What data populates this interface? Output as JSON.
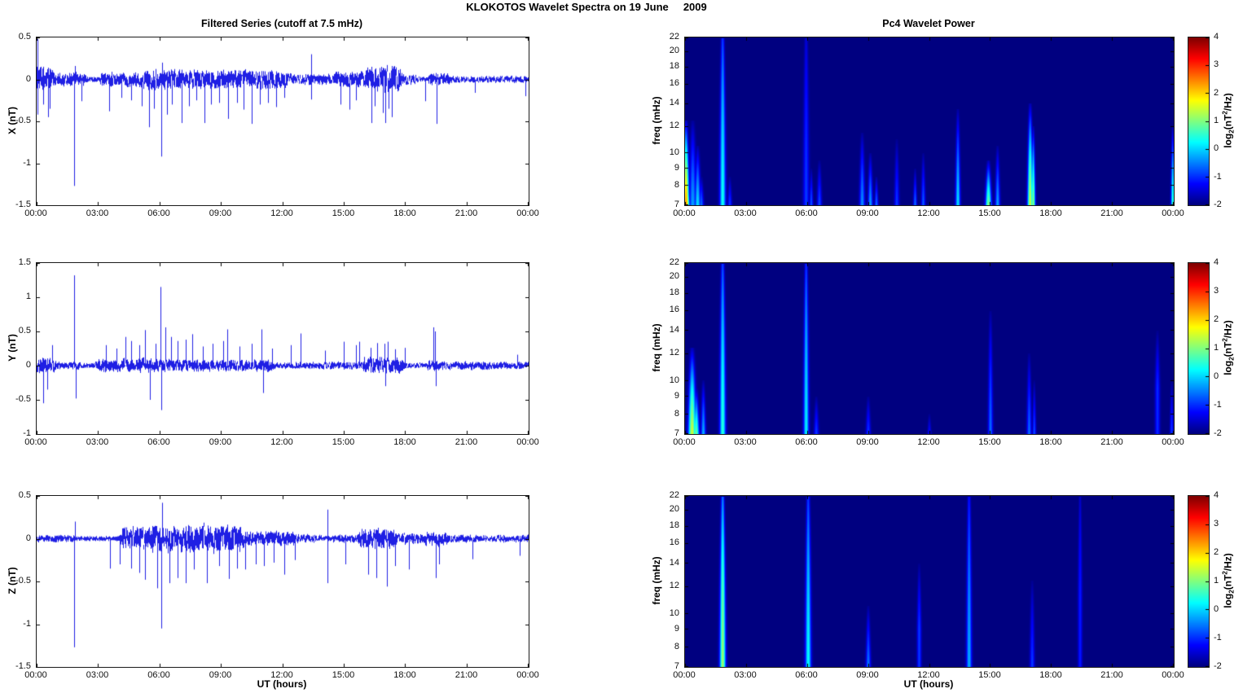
{
  "figure": {
    "title": "KLOKOTOS Wavelet Spectra on 19 June     2009"
  },
  "left_column": {
    "title": "Filtered Series (cutoff at 7.5 mHz)",
    "xlabel": "UT (hours)"
  },
  "right_column": {
    "title": "Pc4 Wavelet Power",
    "xlabel": "UT (hours)",
    "ylabel": "freq (mHz)"
  },
  "time_axis": {
    "ticks_hours": [
      0,
      3,
      6,
      9,
      12,
      15,
      18,
      21,
      24
    ],
    "tick_labels": [
      "00:00",
      "03:00",
      "06:00",
      "09:00",
      "12:00",
      "15:00",
      "18:00",
      "21:00",
      "00:00"
    ]
  },
  "freq_axis": {
    "scale": "log",
    "min_mHz": 7,
    "max_mHz": 22,
    "ticks": [
      7,
      8,
      9,
      10,
      12,
      14,
      16,
      18,
      20,
      22
    ]
  },
  "colorbar": {
    "range": [
      -2,
      4
    ],
    "ticks": [
      4,
      3,
      2,
      1,
      0,
      -1,
      -2
    ],
    "label_plain": "log2(nT^2/Hz)",
    "label_parts": {
      "pre": "log",
      "sub": "2",
      "mid": "(nT",
      "sup": "2",
      "post": "/Hz)"
    },
    "colormap": "jet"
  },
  "line_color": "#0000E0",
  "chart_data": [
    {
      "type": "line",
      "id": "X",
      "title": "Filtered Series (cutoff at 7.5 mHz)",
      "xlabel": "UT (hours)",
      "ylabel": "X (nT)",
      "xlim": [
        0,
        24
      ],
      "ylim": [
        -1.5,
        0.5
      ],
      "yticks": [
        0.5,
        0,
        -0.5,
        -1,
        -1.5
      ],
      "noise_base": 0.022,
      "bursts": [
        [
          0.0,
          0.75,
          0.1
        ],
        [
          0.9,
          2.3,
          0.055
        ],
        [
          3.2,
          5.1,
          0.06
        ],
        [
          5.1,
          8.1,
          0.08
        ],
        [
          8.1,
          12.2,
          0.08
        ],
        [
          12.2,
          14.5,
          0.045
        ],
        [
          14.6,
          16.1,
          0.07
        ],
        [
          16.1,
          17.7,
          0.11
        ],
        [
          17.7,
          18.5,
          0.045
        ],
        [
          19.2,
          20.1,
          0.05
        ],
        [
          20.1,
          24,
          0.03
        ]
      ],
      "spikes": [
        [
          0.02,
          0.48
        ],
        [
          0.04,
          -0.42
        ],
        [
          0.3,
          -0.3
        ],
        [
          0.55,
          -0.45
        ],
        [
          0.65,
          -0.35
        ],
        [
          1.85,
          -1.27
        ],
        [
          1.87,
          0.16
        ],
        [
          2.2,
          -0.26
        ],
        [
          3.55,
          -0.38
        ],
        [
          4.15,
          -0.22
        ],
        [
          4.6,
          -0.25
        ],
        [
          5.15,
          -0.32
        ],
        [
          5.5,
          -0.57
        ],
        [
          5.72,
          -0.35
        ],
        [
          6.1,
          -0.92
        ],
        [
          6.14,
          0.2
        ],
        [
          6.35,
          -0.42
        ],
        [
          6.6,
          -0.3
        ],
        [
          7.1,
          -0.52
        ],
        [
          7.45,
          -0.32
        ],
        [
          7.8,
          -0.25
        ],
        [
          8.2,
          -0.52
        ],
        [
          8.5,
          -0.3
        ],
        [
          8.9,
          -0.28
        ],
        [
          9.35,
          -0.47
        ],
        [
          9.8,
          -0.28
        ],
        [
          10.1,
          -0.36
        ],
        [
          10.5,
          -0.53
        ],
        [
          10.9,
          -0.3
        ],
        [
          11.3,
          -0.28
        ],
        [
          11.7,
          -0.33
        ],
        [
          12.1,
          -0.22
        ],
        [
          13.4,
          0.3
        ],
        [
          13.42,
          -0.24
        ],
        [
          14.85,
          -0.3
        ],
        [
          15.3,
          -0.36
        ],
        [
          15.6,
          -0.25
        ],
        [
          16.35,
          -0.52
        ],
        [
          16.5,
          -0.32
        ],
        [
          16.9,
          -0.4
        ],
        [
          17.05,
          -0.52
        ],
        [
          17.2,
          -0.35
        ],
        [
          17.35,
          -0.45
        ],
        [
          19.0,
          -0.26
        ],
        [
          19.55,
          -0.53
        ],
        [
          21.4,
          -0.16
        ],
        [
          23.9,
          -0.2
        ]
      ]
    },
    {
      "type": "line",
      "id": "Y",
      "xlabel": "UT (hours)",
      "ylabel": "Y (nT)",
      "xlim": [
        0,
        24
      ],
      "ylim": [
        -1,
        1.5
      ],
      "yticks": [
        1.5,
        1,
        0.5,
        0,
        -0.5,
        -1
      ],
      "noise_base": 0.028,
      "bursts": [
        [
          0,
          0.85,
          0.08
        ],
        [
          1.0,
          2.1,
          0.04
        ],
        [
          3.0,
          6.5,
          0.07
        ],
        [
          6.5,
          11.5,
          0.06
        ],
        [
          11.5,
          14,
          0.035
        ],
        [
          14,
          16,
          0.04
        ],
        [
          16,
          17.8,
          0.08
        ],
        [
          19.1,
          19.9,
          0.05
        ],
        [
          20,
          24,
          0.04
        ]
      ],
      "spikes": [
        [
          0.3,
          -0.55
        ],
        [
          0.5,
          -0.35
        ],
        [
          0.75,
          0.3
        ],
        [
          1.85,
          1.32
        ],
        [
          1.9,
          -0.48
        ],
        [
          3.4,
          0.3
        ],
        [
          3.9,
          0.25
        ],
        [
          4.35,
          0.42
        ],
        [
          4.6,
          0.36
        ],
        [
          5.0,
          0.3
        ],
        [
          5.3,
          0.52
        ],
        [
          5.55,
          -0.5
        ],
        [
          5.8,
          0.32
        ],
        [
          6.05,
          1.15
        ],
        [
          6.1,
          -0.65
        ],
        [
          6.3,
          0.56
        ],
        [
          6.55,
          0.42
        ],
        [
          6.9,
          0.36
        ],
        [
          7.3,
          0.38
        ],
        [
          7.6,
          0.46
        ],
        [
          8.1,
          0.28
        ],
        [
          8.6,
          0.32
        ],
        [
          9.1,
          0.36
        ],
        [
          9.3,
          0.53
        ],
        [
          9.9,
          0.28
        ],
        [
          10.5,
          0.32
        ],
        [
          11.0,
          0.53
        ],
        [
          11.05,
          -0.4
        ],
        [
          11.5,
          0.25
        ],
        [
          12.4,
          0.3
        ],
        [
          12.9,
          0.47
        ],
        [
          14.1,
          0.22
        ],
        [
          15.0,
          0.35
        ],
        [
          15.6,
          0.3
        ],
        [
          15.75,
          0.35
        ],
        [
          16.3,
          0.26
        ],
        [
          16.65,
          0.33
        ],
        [
          17.0,
          0.32
        ],
        [
          17.05,
          -0.3
        ],
        [
          17.15,
          0.35
        ],
        [
          17.5,
          0.24
        ],
        [
          18.0,
          0.26
        ],
        [
          19.4,
          0.56
        ],
        [
          19.48,
          0.5
        ],
        [
          19.5,
          -0.3
        ],
        [
          23.5,
          0.16
        ]
      ]
    },
    {
      "type": "line",
      "id": "Z",
      "xlabel": "UT (hours)",
      "ylabel": "Z (nT)",
      "xlim": [
        0,
        24
      ],
      "ylim": [
        -1.5,
        0.5
      ],
      "yticks": [
        0.5,
        0,
        -0.5,
        -1,
        -1.5
      ],
      "noise_base": 0.022,
      "bursts": [
        [
          0,
          1.8,
          0.03
        ],
        [
          4.2,
          5.2,
          0.09
        ],
        [
          5.2,
          10.0,
          0.11
        ],
        [
          10,
          12.5,
          0.06
        ],
        [
          12.5,
          13.8,
          0.035
        ],
        [
          14.5,
          15.5,
          0.035
        ],
        [
          15.8,
          17.5,
          0.08
        ],
        [
          17.5,
          19,
          0.045
        ],
        [
          19,
          20,
          0.06
        ],
        [
          20.1,
          24,
          0.03
        ]
      ],
      "spikes": [
        [
          1.85,
          -1.27
        ],
        [
          1.86,
          0.2
        ],
        [
          3.6,
          -0.35
        ],
        [
          4.05,
          -0.3
        ],
        [
          4.6,
          -0.35
        ],
        [
          5.0,
          -0.4
        ],
        [
          5.3,
          -0.48
        ],
        [
          5.9,
          -0.58
        ],
        [
          6.1,
          -1.05
        ],
        [
          6.13,
          0.42
        ],
        [
          6.5,
          -0.52
        ],
        [
          6.9,
          -0.46
        ],
        [
          7.3,
          -0.52
        ],
        [
          7.7,
          -0.36
        ],
        [
          8.3,
          -0.52
        ],
        [
          8.9,
          -0.32
        ],
        [
          9.4,
          -0.47
        ],
        [
          9.8,
          -0.35
        ],
        [
          10.2,
          -0.36
        ],
        [
          10.7,
          -0.3
        ],
        [
          11.1,
          -0.32
        ],
        [
          11.6,
          -0.28
        ],
        [
          12.1,
          -0.42
        ],
        [
          12.6,
          -0.25
        ],
        [
          14.2,
          0.34
        ],
        [
          14.22,
          -0.52
        ],
        [
          15.1,
          -0.3
        ],
        [
          16.2,
          -0.42
        ],
        [
          16.6,
          -0.46
        ],
        [
          17.1,
          -0.56
        ],
        [
          17.5,
          -0.32
        ],
        [
          18.2,
          -0.36
        ],
        [
          19.5,
          -0.46
        ],
        [
          19.65,
          -0.3
        ],
        [
          21.3,
          -0.24
        ],
        [
          23.6,
          -0.2
        ]
      ]
    },
    {
      "type": "heatmap",
      "id": "X",
      "title": "Pc4 Wavelet Power",
      "xlabel": "UT (hours)",
      "ylabel": "freq (mHz)",
      "zlabel": "log2(nT^2/Hz)",
      "xlim": [
        0,
        24
      ],
      "ylim_mHz": [
        7,
        22
      ],
      "yscale": "log",
      "zlim": [
        -2,
        4
      ],
      "colormap": "jet",
      "background_value": -2,
      "event_format": [
        "hour",
        "freq_lo_mHz",
        "freq_hi_mHz",
        "peak_log2_power",
        "width_hours"
      ],
      "events": [
        [
          0.05,
          7,
          12.5,
          2.4,
          0.1
        ],
        [
          0.12,
          7,
          9,
          1.4,
          0.07
        ],
        [
          0.38,
          7,
          12.5,
          -0.3,
          0.12
        ],
        [
          0.62,
          7,
          10.5,
          0.1,
          0.1
        ],
        [
          0.8,
          7,
          8.5,
          -0.6,
          0.08
        ],
        [
          1.85,
          7,
          22,
          0.35,
          0.1
        ],
        [
          2.2,
          7,
          8.5,
          -0.9,
          0.07
        ],
        [
          5.95,
          7,
          22,
          -0.9,
          0.1
        ],
        [
          6.2,
          7,
          9,
          -0.7,
          0.06
        ],
        [
          6.6,
          7,
          9.5,
          -0.8,
          0.08
        ],
        [
          8.7,
          7,
          11.5,
          -0.4,
          0.09
        ],
        [
          9.1,
          7,
          10,
          -0.3,
          0.08
        ],
        [
          9.4,
          7,
          8.5,
          -0.6,
          0.06
        ],
        [
          10.4,
          7,
          11,
          -0.9,
          0.08
        ],
        [
          11.3,
          7,
          9,
          -0.6,
          0.06
        ],
        [
          11.7,
          7,
          10,
          -0.7,
          0.07
        ],
        [
          13.4,
          7,
          13.5,
          0.1,
          0.08
        ],
        [
          14.9,
          7,
          9.5,
          1.0,
          0.1
        ],
        [
          15.35,
          7,
          10.5,
          -0.3,
          0.08
        ],
        [
          16.95,
          7,
          14,
          1.5,
          0.09
        ],
        [
          17.1,
          7,
          12,
          1.1,
          0.07
        ],
        [
          23.95,
          7,
          12,
          0.6,
          0.06
        ]
      ]
    },
    {
      "type": "heatmap",
      "id": "Y",
      "xlabel": "UT (hours)",
      "ylabel": "freq (mHz)",
      "zlabel": "log2(nT^2/Hz)",
      "xlim": [
        0,
        24
      ],
      "ylim_mHz": [
        7,
        22
      ],
      "yscale": "log",
      "zlim": [
        -2,
        4
      ],
      "colormap": "jet",
      "background_value": -2,
      "event_format": [
        "hour",
        "freq_lo_mHz",
        "freq_hi_mHz",
        "peak_log2_power",
        "width_hours"
      ],
      "events": [
        [
          0.35,
          7,
          12.5,
          1.5,
          0.13
        ],
        [
          0.55,
          7,
          9.5,
          0.9,
          0.1
        ],
        [
          0.9,
          7,
          10,
          -0.2,
          0.08
        ],
        [
          1.85,
          7,
          22,
          0.5,
          0.1
        ],
        [
          5.95,
          7,
          22,
          0.2,
          0.09
        ],
        [
          6.45,
          7,
          9,
          -0.9,
          0.08
        ],
        [
          9.0,
          7,
          9,
          -0.9,
          0.08
        ],
        [
          12.0,
          7,
          8,
          -1.2,
          0.06
        ],
        [
          15.0,
          7,
          16,
          -0.6,
          0.08
        ],
        [
          16.9,
          7,
          12,
          -0.6,
          0.08
        ],
        [
          17.15,
          7,
          10,
          -0.8,
          0.06
        ],
        [
          23.2,
          9.5,
          14,
          -1.0,
          0.08
        ],
        [
          23.9,
          7,
          10,
          -0.9,
          0.06
        ]
      ]
    },
    {
      "type": "heatmap",
      "id": "Z",
      "xlabel": "UT (hours)",
      "ylabel": "freq (mHz)",
      "zlabel": "log2(nT^2/Hz)",
      "xlim": [
        0,
        24
      ],
      "ylim_mHz": [
        7,
        22
      ],
      "yscale": "log",
      "zlim": [
        -2,
        4
      ],
      "colormap": "jet",
      "background_value": -2,
      "event_format": [
        "hour",
        "freq_lo_mHz",
        "freq_hi_mHz",
        "peak_log2_power",
        "width_hours"
      ],
      "events": [
        [
          1.85,
          7,
          22,
          1.2,
          0.1
        ],
        [
          6.05,
          7,
          22,
          0.3,
          0.1
        ],
        [
          9.0,
          7,
          10.5,
          -0.5,
          0.08
        ],
        [
          11.5,
          9,
          14,
          -0.9,
          0.07
        ],
        [
          13.95,
          7,
          22,
          -0.2,
          0.09
        ],
        [
          17.05,
          7,
          12.5,
          -0.9,
          0.08
        ],
        [
          19.4,
          11,
          22,
          -1.1,
          0.07
        ]
      ]
    }
  ]
}
